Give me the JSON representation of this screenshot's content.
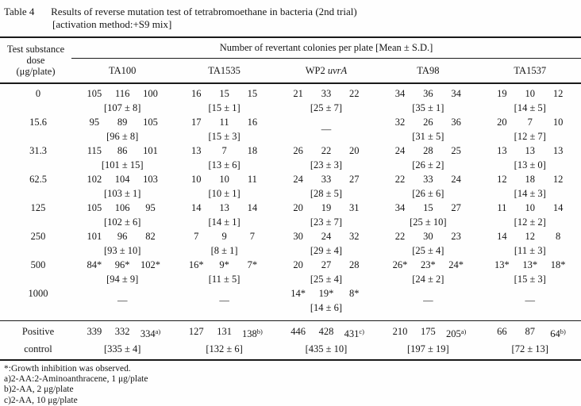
{
  "title": {
    "label": "Table 4",
    "text": "Results of reverse mutation test of tetrabromoethane in bacteria (2nd trial)",
    "subtitle": "[activation method:+S9 mix]"
  },
  "table": {
    "dose_header_lines": [
      "Test substance",
      "dose",
      "(μg/plate)"
    ],
    "span_header": "Number of revertant colonies per plate [Mean ± S.D.]",
    "missing_symbol": "—",
    "strains": [
      {
        "text": "TA100",
        "italic": ""
      },
      {
        "text": "TA1535",
        "italic": ""
      },
      {
        "text": "WP2",
        "italic": "uvrA"
      },
      {
        "text": "TA98",
        "italic": ""
      },
      {
        "text": "TA1537",
        "italic": ""
      }
    ],
    "rows": [
      {
        "dose": "0",
        "cells": [
          {
            "values": [
              "105",
              "116",
              "100"
            ],
            "mean": "[107 ± 8]"
          },
          {
            "values": [
              "16",
              "15",
              "15"
            ],
            "mean": "[15 ± 1]"
          },
          {
            "values": [
              "21",
              "33",
              "22"
            ],
            "mean": "[25 ± 7]"
          },
          {
            "values": [
              "34",
              "36",
              "34"
            ],
            "mean": "[35 ± 1]"
          },
          {
            "values": [
              "19",
              "10",
              "12"
            ],
            "mean": "[14 ± 5]"
          }
        ]
      },
      {
        "dose": "15.6",
        "cells": [
          {
            "values": [
              "95",
              "89",
              "105"
            ],
            "mean": "[96 ± 8]"
          },
          {
            "values": [
              "17",
              "11",
              "16"
            ],
            "mean": "[15 ± 3]"
          },
          {
            "dash": true
          },
          {
            "values": [
              "32",
              "26",
              "36"
            ],
            "mean": "[31 ± 5]"
          },
          {
            "values": [
              "20",
              "7",
              "10"
            ],
            "mean": "[12 ± 7]"
          }
        ]
      },
      {
        "dose": "31.3",
        "cells": [
          {
            "values": [
              "115",
              "86",
              "101"
            ],
            "mean": "[101 ± 15]"
          },
          {
            "values": [
              "13",
              "7",
              "18"
            ],
            "mean": "[13 ± 6]"
          },
          {
            "values": [
              "26",
              "22",
              "20"
            ],
            "mean": "[23 ± 3]"
          },
          {
            "values": [
              "24",
              "28",
              "25"
            ],
            "mean": "[26 ± 2]"
          },
          {
            "values": [
              "13",
              "13",
              "13"
            ],
            "mean": "[13 ± 0]"
          }
        ]
      },
      {
        "dose": "62.5",
        "cells": [
          {
            "values": [
              "102",
              "104",
              "103"
            ],
            "mean": "[103 ± 1]"
          },
          {
            "values": [
              "10",
              "10",
              "11"
            ],
            "mean": "[10 ± 1]"
          },
          {
            "values": [
              "24",
              "33",
              "27"
            ],
            "mean": "[28 ± 5]"
          },
          {
            "values": [
              "22",
              "33",
              "24"
            ],
            "mean": "[26 ± 6]"
          },
          {
            "values": [
              "12",
              "18",
              "12"
            ],
            "mean": "[14 ± 3]"
          }
        ]
      },
      {
        "dose": "125",
        "cells": [
          {
            "values": [
              "105",
              "106",
              "95"
            ],
            "mean": "[102 ± 6]"
          },
          {
            "values": [
              "14",
              "13",
              "14"
            ],
            "mean": "[14 ± 1]"
          },
          {
            "values": [
              "20",
              "19",
              "31"
            ],
            "mean": "[23 ± 7]"
          },
          {
            "values": [
              "34",
              "15",
              "27"
            ],
            "mean": "[25 ± 10]"
          },
          {
            "values": [
              "11",
              "10",
              "14"
            ],
            "mean": "[12 ± 2]"
          }
        ]
      },
      {
        "dose": "250",
        "cells": [
          {
            "values": [
              "101",
              "96",
              "82"
            ],
            "mean": "[93 ± 10]"
          },
          {
            "values": [
              "7",
              "9",
              "7"
            ],
            "mean": "[8 ± 1]"
          },
          {
            "values": [
              "30",
              "24",
              "32"
            ],
            "mean": "[29 ± 4]"
          },
          {
            "values": [
              "22",
              "30",
              "23"
            ],
            "mean": "[25 ± 4]"
          },
          {
            "values": [
              "14",
              "12",
              "8"
            ],
            "mean": "[11 ± 3]"
          }
        ]
      },
      {
        "dose": "500",
        "cells": [
          {
            "values": [
              "84*",
              "96*",
              "102*"
            ],
            "mean": "[94 ± 9]"
          },
          {
            "values": [
              "16*",
              "9*",
              "7*"
            ],
            "mean": "[11 ± 5]"
          },
          {
            "values": [
              "20",
              "27",
              "28"
            ],
            "mean": "[25 ± 4]"
          },
          {
            "values": [
              "26*",
              "23*",
              "24*"
            ],
            "mean": "[24 ± 2]"
          },
          {
            "values": [
              "13*",
              "13*",
              "18*"
            ],
            "mean": "[15 ± 3]"
          }
        ]
      },
      {
        "dose": "1000",
        "cells": [
          {
            "dash": true
          },
          {
            "dash": true
          },
          {
            "values": [
              "14*",
              "19*",
              "8*"
            ],
            "mean": "[14 ± 6]"
          },
          {
            "dash": true
          },
          {
            "dash": true
          }
        ]
      }
    ],
    "positive_row": {
      "dose_lines": [
        "Positive",
        "control"
      ],
      "cells": [
        {
          "values": [
            "339",
            "332",
            "334"
          ],
          "sup": "a)",
          "mean": "[335 ± 4]"
        },
        {
          "values": [
            "127",
            "131",
            "138"
          ],
          "sup": "b)",
          "mean": "[132 ± 6]"
        },
        {
          "values": [
            "446",
            "428",
            "431"
          ],
          "sup": "c)",
          "mean": "[435 ± 10]"
        },
        {
          "values": [
            "210",
            "175",
            "205"
          ],
          "sup": "a)",
          "mean": "[197 ± 19]"
        },
        {
          "values": [
            "66",
            "87",
            "64"
          ],
          "sup": "b)",
          "mean": "[72 ± 13]"
        }
      ]
    },
    "footnotes": [
      "*:Growth inhibition was observed.",
      "a)2-AA:2-Aminoanthracene, 1 μg/plate",
      "b)2-AA, 2 μg/plate",
      "c)2-AA, 10 μg/plate"
    ]
  }
}
